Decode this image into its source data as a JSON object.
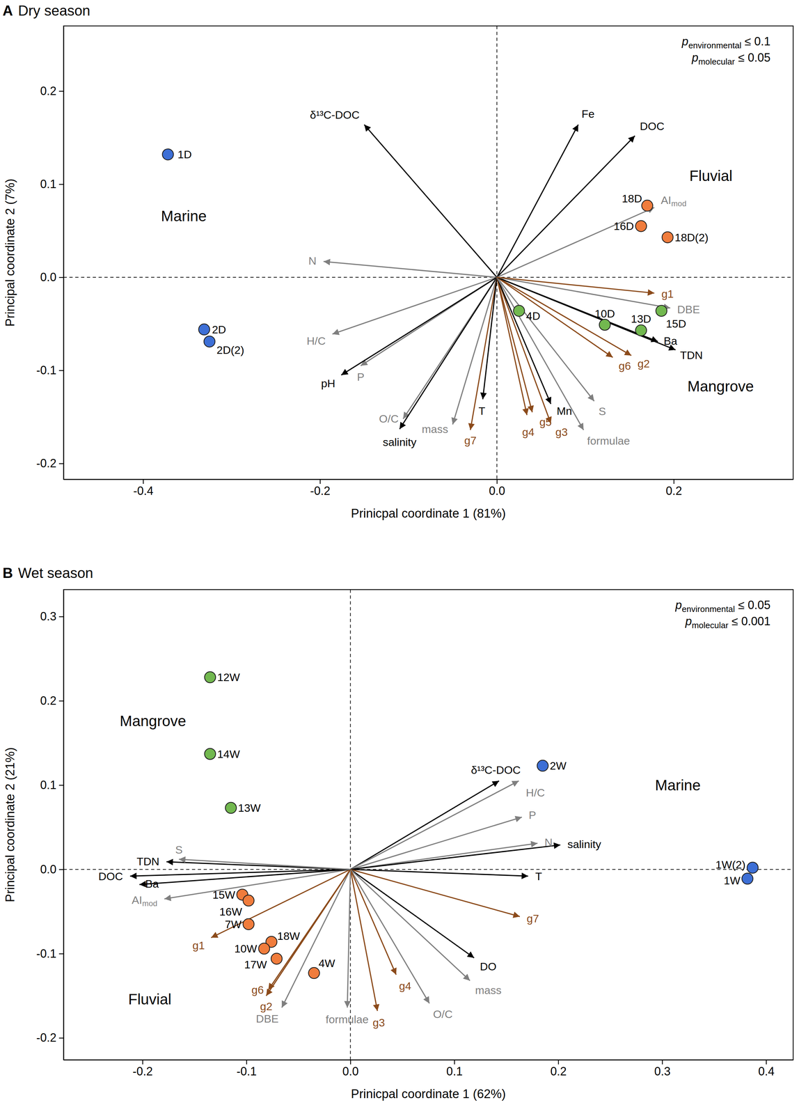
{
  "chart_data": [
    {
      "type": "biplot",
      "panel": "A",
      "title": "Dry season",
      "xlabel": "Prinicpal coordinate 1 (81%)",
      "ylabel": "Principal coordinate 2 (7%)",
      "xlim": [
        -0.49,
        0.335
      ],
      "ylim": [
        -0.217,
        0.27
      ],
      "xticks": [
        -0.4,
        -0.2,
        {
          "value": 0,
          "label": "0.0"
        },
        0.2
      ],
      "yticks": [
        -0.2,
        -0.1,
        {
          "value": 0,
          "label": "0.0"
        },
        0.1,
        0.2
      ],
      "reference_lines": {
        "x": [
          0
        ],
        "y": [
          0
        ]
      },
      "series": [
        {
          "color": "#3d6fd6",
          "labels": [
            "1D",
            "2D",
            "2D(2)"
          ],
          "x": [
            -0.372,
            -0.331,
            -0.325
          ],
          "values": [
            0.132,
            -0.056,
            -0.069
          ]
        },
        {
          "color": "#f07c3c",
          "labels": [
            "18D",
            "16D",
            "18D(2)"
          ],
          "x": [
            0.17,
            0.163,
            0.193
          ],
          "values": [
            0.077,
            0.055,
            0.043
          ]
        },
        {
          "color": "#72b84f",
          "labels": [
            "4D",
            "10D",
            "13D",
            "15D"
          ],
          "x": [
            0.025,
            0.122,
            0.163,
            0.186
          ],
          "values": [
            -0.036,
            -0.051,
            -0.057,
            -0.036
          ]
        }
      ],
      "vectors": [
        {
          "label": "δ¹³C-DOC",
          "color": "#000000",
          "x": -0.15,
          "y": 0.164
        },
        {
          "label": "Fe",
          "color": "#000000",
          "x": 0.092,
          "y": 0.164
        },
        {
          "label": "DOC",
          "color": "#000000",
          "x": 0.156,
          "y": 0.152
        },
        {
          "label": "AI",
          "sub": "mod",
          "color": "#7f7f7f",
          "x": 0.178,
          "y": 0.075
        },
        {
          "label": "N",
          "color": "#7f7f7f",
          "x": -0.196,
          "y": 0.017
        },
        {
          "label": "H/C",
          "color": "#7f7f7f",
          "x": -0.186,
          "y": -0.061
        },
        {
          "label": "P",
          "color": "#7f7f7f",
          "x": -0.154,
          "y": -0.095
        },
        {
          "label": "pH",
          "color": "#000000",
          "x": -0.176,
          "y": -0.105
        },
        {
          "label": "O/C",
          "color": "#7f7f7f",
          "x": -0.106,
          "y": -0.152
        },
        {
          "label": "salinity",
          "color": "#000000",
          "x": -0.11,
          "y": -0.163
        },
        {
          "label": "mass",
          "color": "#7f7f7f",
          "x": -0.05,
          "y": -0.158
        },
        {
          "label": "g7",
          "color": "#8b4a1a",
          "x": -0.03,
          "y": -0.164
        },
        {
          "label": "T",
          "color": "#000000",
          "x": -0.016,
          "y": -0.131
        },
        {
          "label": "g4",
          "color": "#8b4a1a",
          "x": 0.034,
          "y": -0.148
        },
        {
          "label": "g5",
          "color": "#8b4a1a",
          "x": 0.04,
          "y": -0.145
        },
        {
          "label": "g3",
          "color": "#8b4a1a",
          "x": 0.061,
          "y": -0.157
        },
        {
          "label": "Mn",
          "color": "#000000",
          "x": 0.061,
          "y": -0.136
        },
        {
          "label": "S",
          "color": "#7f7f7f",
          "x": 0.11,
          "y": -0.133
        },
        {
          "label": "formulae",
          "color": "#7f7f7f",
          "x": 0.098,
          "y": -0.164
        },
        {
          "label": "g6",
          "color": "#8b4a1a",
          "x": 0.131,
          "y": -0.086
        },
        {
          "label": "g2",
          "color": "#8b4a1a",
          "x": 0.152,
          "y": -0.084
        },
        {
          "label": "TDN",
          "color": "#000000",
          "x": 0.202,
          "y": -0.078
        },
        {
          "label": "Ba",
          "color": "#000000",
          "x": 0.182,
          "y": -0.069
        },
        {
          "label": "DBE",
          "color": "#7f7f7f",
          "x": 0.196,
          "y": -0.033
        },
        {
          "label": "g1",
          "color": "#8b4a1a",
          "x": 0.178,
          "y": -0.017
        }
      ],
      "annotations": [
        {
          "text": "Marine",
          "x": -0.354,
          "y": 0.066
        },
        {
          "text": "Fluvial",
          "x": 0.242,
          "y": 0.109
        },
        {
          "text": "Mangrove",
          "x": 0.253,
          "y": -0.117
        }
      ],
      "stats": [
        {
          "text": "p",
          "sub": "environmental",
          "rest": "≤ 0.1"
        },
        {
          "text": "p",
          "sub": "molecular",
          "rest": "≤ 0.05"
        }
      ]
    },
    {
      "type": "biplot",
      "panel": "B",
      "title": "Wet season",
      "xlabel": "Prinicpal coordinate 1 (62%)",
      "ylabel": "Principal coordinate 2 (21%)",
      "xlim": [
        -0.276,
        0.426
      ],
      "ylim": [
        -0.226,
        0.332
      ],
      "xticks": [
        -0.2,
        -0.1,
        {
          "value": 0,
          "label": "0.0"
        },
        0.1,
        0.2,
        0.3,
        0.4
      ],
      "yticks": [
        -0.2,
        -0.1,
        {
          "value": 0,
          "label": "0.0"
        },
        0.1,
        0.2,
        0.3
      ],
      "reference_lines": {
        "x": [
          0
        ],
        "y": [
          0
        ]
      },
      "series": [
        {
          "color": "#3d6fd6",
          "labels": [
            "2W",
            "1W(2)",
            "1W"
          ],
          "x": [
            0.185,
            0.387,
            0.382
          ],
          "values": [
            0.123,
            0.002,
            -0.011
          ]
        },
        {
          "color": "#f07c3c",
          "labels": [
            "15W",
            "16W",
            "7W",
            "18W",
            "10W",
            "17W",
            "4W"
          ],
          "x": [
            -0.104,
            -0.098,
            -0.098,
            -0.076,
            -0.083,
            -0.071,
            -0.035
          ],
          "values": [
            -0.03,
            -0.037,
            -0.065,
            -0.086,
            -0.094,
            -0.106,
            -0.123
          ]
        },
        {
          "color": "#72b84f",
          "labels": [
            "12W",
            "14W",
            "13W"
          ],
          "x": [
            -0.135,
            -0.135,
            -0.115
          ],
          "values": [
            0.228,
            0.137,
            0.073
          ]
        }
      ],
      "vectors": [
        {
          "label": "δ¹³C-DOC",
          "color": "#000000",
          "x": 0.143,
          "y": 0.105
        },
        {
          "label": "H/C",
          "color": "#7f7f7f",
          "x": 0.162,
          "y": 0.105
        },
        {
          "label": "P",
          "color": "#7f7f7f",
          "x": 0.165,
          "y": 0.062
        },
        {
          "label": "N",
          "color": "#7f7f7f",
          "x": 0.18,
          "y": 0.031
        },
        {
          "label": "salinity",
          "color": "#000000",
          "x": 0.202,
          "y": 0.029
        },
        {
          "label": "T",
          "color": "#000000",
          "x": 0.171,
          "y": -0.008
        },
        {
          "label": "g7",
          "color": "#8b4a1a",
          "x": 0.163,
          "y": -0.056
        },
        {
          "label": "DO",
          "color": "#000000",
          "x": 0.119,
          "y": -0.105
        },
        {
          "label": "mass",
          "color": "#7f7f7f",
          "x": 0.115,
          "y": -0.132
        },
        {
          "label": "O/C",
          "color": "#7f7f7f",
          "x": 0.076,
          "y": -0.159
        },
        {
          "label": "g4",
          "color": "#8b4a1a",
          "x": 0.044,
          "y": -0.125
        },
        {
          "label": "g3",
          "color": "#8b4a1a",
          "x": 0.026,
          "y": -0.168
        },
        {
          "label": "formulae",
          "color": "#7f7f7f",
          "x": -0.003,
          "y": -0.164
        },
        {
          "label": "DBE",
          "color": "#7f7f7f",
          "x": -0.066,
          "y": -0.164
        },
        {
          "label": "g6",
          "color": "#8b4a1a",
          "x": -0.079,
          "y": -0.143
        },
        {
          "label": "g2",
          "color": "#8b4a1a",
          "x": -0.081,
          "y": -0.15
        },
        {
          "label": "g1",
          "color": "#8b4a1a",
          "x": -0.134,
          "y": -0.081
        },
        {
          "label": "AI",
          "sub": "mod",
          "color": "#7f7f7f",
          "x": -0.179,
          "y": -0.035
        },
        {
          "label": "Ba",
          "color": "#000000",
          "x": -0.203,
          "y": -0.018
        },
        {
          "label": "DOC",
          "color": "#000000",
          "x": -0.212,
          "y": -0.008
        },
        {
          "label": "TDN",
          "color": "#000000",
          "x": -0.177,
          "y": 0.009
        },
        {
          "label": "S",
          "color": "#7f7f7f",
          "x": -0.165,
          "y": 0.012
        }
      ],
      "annotations": [
        {
          "text": "Mangrove",
          "x": -0.19,
          "y": 0.176
        },
        {
          "text": "Marine",
          "x": 0.315,
          "y": 0.1
        },
        {
          "text": "Fluvial",
          "x": -0.193,
          "y": -0.154
        }
      ],
      "stats": [
        {
          "text": "p",
          "sub": "environmental",
          "rest": "≤ 0.05"
        },
        {
          "text": "p",
          "sub": "molecular",
          "rest": "≤ 0.001"
        }
      ]
    }
  ]
}
